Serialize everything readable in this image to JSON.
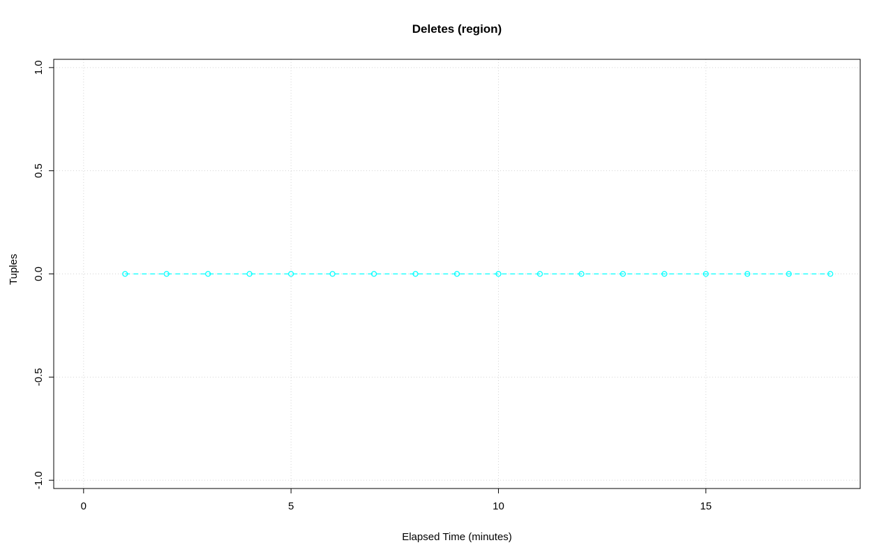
{
  "chart_data": {
    "type": "scatter",
    "title": "Deletes (region)",
    "xlabel": "Elapsed Time (minutes)",
    "ylabel": "Tuples",
    "x": [
      1,
      2,
      3,
      4,
      5,
      6,
      7,
      8,
      9,
      10,
      11,
      12,
      13,
      14,
      15,
      16,
      17,
      18
    ],
    "y": [
      0,
      0,
      0,
      0,
      0,
      0,
      0,
      0,
      0,
      0,
      0,
      0,
      0,
      0,
      0,
      0,
      0,
      0
    ],
    "xlim": [
      -0.72,
      18.72
    ],
    "ylim": [
      -1.04,
      1.04
    ],
    "xticks": [
      0,
      5,
      10,
      15
    ],
    "xtick_labels": [
      "0",
      "5",
      "10",
      "15"
    ],
    "yticks": [
      -1.0,
      -0.5,
      0.0,
      0.5,
      1.0
    ],
    "ytick_labels": [
      "-1.0",
      "-0.5",
      "0.0",
      "0.5",
      "1.0"
    ],
    "grid": true,
    "legend": "none",
    "series_color": "#00FFFF",
    "grid_color": "#D3D3D3",
    "axis_color": "#000000",
    "line_style": "dashed",
    "marker": "open-circle"
  }
}
